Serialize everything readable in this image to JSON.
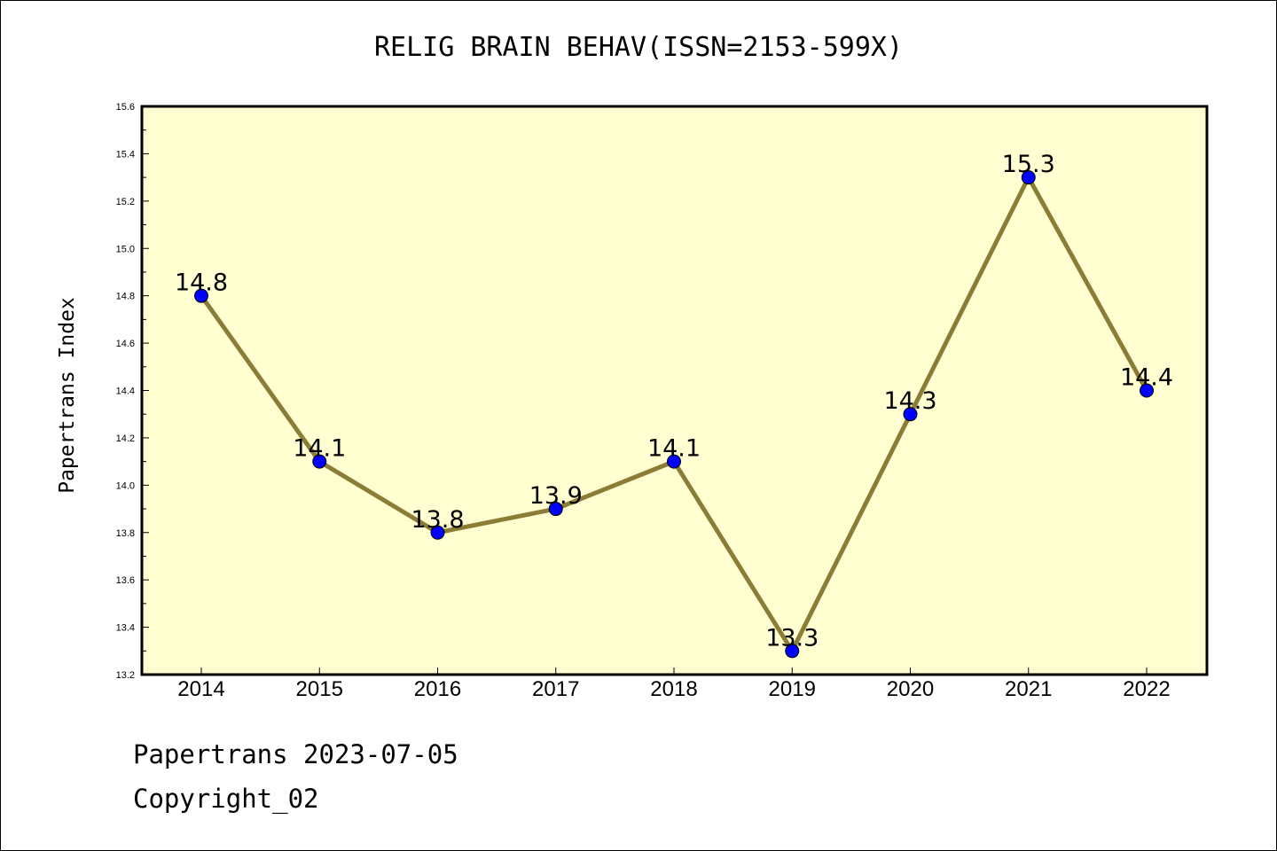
{
  "chart_data": {
    "type": "line",
    "title": "RELIG BRAIN BEHAV(ISSN=2153-599X)",
    "xlabel": "",
    "ylabel": "Papertrans Index",
    "categories": [
      "2014",
      "2015",
      "2016",
      "2017",
      "2018",
      "2019",
      "2020",
      "2021",
      "2022"
    ],
    "series": [
      {
        "values": [
          14.8,
          14.1,
          13.8,
          13.9,
          14.1,
          13.3,
          14.3,
          15.3,
          14.4
        ],
        "data_labels": [
          "14.8",
          "14.1",
          "13.8",
          "13.9",
          "14.1",
          "13.3",
          "14.3",
          "15.3",
          "14.4"
        ]
      }
    ],
    "ylim": [
      13.2,
      15.6
    ],
    "yticks": [
      "13.2",
      "13.4",
      "13.6",
      "13.8",
      "14.0",
      "14.2",
      "14.4",
      "14.6",
      "14.8",
      "15.0",
      "15.2",
      "15.4",
      "15.6"
    ],
    "grid": false,
    "colors": {
      "plot_background": "#ffffd2",
      "line": "#8b7d35",
      "marker": "#0000ff"
    }
  },
  "footer": {
    "date_line": "Papertrans 2023-07-05",
    "copyright": "Copyright_02"
  }
}
